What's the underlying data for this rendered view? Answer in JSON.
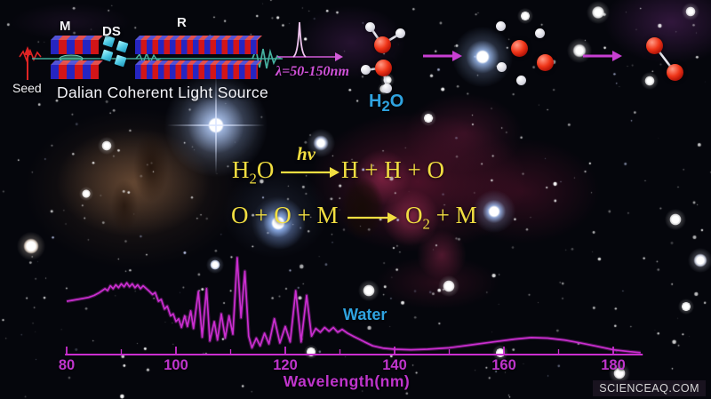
{
  "colors": {
    "spectrum_magenta": "#cb2ed0",
    "label_cyan": "#2fa3e0",
    "equation_yellow": "#f1de41",
    "seed_red": "#e02424",
    "beam_teal": "#46b2a0",
    "undulator_blue": "#2525c2",
    "undulator_red": "#d21518",
    "ds_cyan": "#49c6e2"
  },
  "light_source": {
    "seed_label": "Seed",
    "modulator_label": "M",
    "dispersion_label": "DS",
    "radiator_label": "R",
    "name": "Dalian Coherent Light Source",
    "wavelength_range": "λ=50-150nm"
  },
  "molecules": {
    "h2o_label": {
      "pre": "H",
      "sub": "2",
      "post": "O"
    }
  },
  "reactions": {
    "line1": {
      "reactant": {
        "pre": "H",
        "sub": "2",
        "post": "O"
      },
      "photon": "hν",
      "products": "H + H + O"
    },
    "line2": {
      "reactants": "O + O + M",
      "products": {
        "pre": "O",
        "sub": "2",
        "post": " + M"
      }
    }
  },
  "chart_data": {
    "type": "line",
    "series_name": "Water",
    "xlabel": "Wavelength(nm)",
    "x_ticks": [
      80,
      100,
      120,
      140,
      160,
      180
    ],
    "x_minor_ticks": [
      90,
      110,
      130,
      150,
      170
    ],
    "xlim": [
      79.7,
      185.4
    ],
    "ylim": [
      0,
      1.05
    ],
    "legend_position": "above-line-right",
    "grid": false,
    "line_color": "#cb2ed0",
    "points": [
      [
        80,
        0.55
      ],
      [
        81,
        0.56
      ],
      [
        82,
        0.57
      ],
      [
        83,
        0.58
      ],
      [
        84,
        0.59
      ],
      [
        85,
        0.61
      ],
      [
        86,
        0.64
      ],
      [
        87,
        0.68
      ],
      [
        87.5,
        0.66
      ],
      [
        88,
        0.71
      ],
      [
        88.5,
        0.68
      ],
      [
        89,
        0.72
      ],
      [
        89.5,
        0.69
      ],
      [
        90,
        0.73
      ],
      [
        90.5,
        0.7
      ],
      [
        91,
        0.74
      ],
      [
        91.5,
        0.7
      ],
      [
        92,
        0.73
      ],
      [
        92.5,
        0.69
      ],
      [
        93,
        0.72
      ],
      [
        93.5,
        0.68
      ],
      [
        94,
        0.71
      ],
      [
        95,
        0.66
      ],
      [
        95.7,
        0.62
      ],
      [
        96.2,
        0.64
      ],
      [
        96.8,
        0.55
      ],
      [
        97.3,
        0.57
      ],
      [
        97.9,
        0.47
      ],
      [
        98.4,
        0.5
      ],
      [
        99,
        0.4
      ],
      [
        99.5,
        0.42
      ],
      [
        100,
        0.34
      ],
      [
        100.5,
        0.37
      ],
      [
        101,
        0.28
      ],
      [
        101.6,
        0.4
      ],
      [
        102.1,
        0.29
      ],
      [
        102.7,
        0.45
      ],
      [
        103.2,
        0.27
      ],
      [
        104.1,
        0.65
      ],
      [
        104.8,
        0.18
      ],
      [
        105.6,
        0.68
      ],
      [
        106.2,
        0.14
      ],
      [
        107,
        0.34
      ],
      [
        107.6,
        0.15
      ],
      [
        108.3,
        0.42
      ],
      [
        109,
        0.17
      ],
      [
        109.7,
        0.4
      ],
      [
        110.4,
        0.21
      ],
      [
        111.2,
        1.0
      ],
      [
        111.9,
        0.38
      ],
      [
        112.6,
        0.86
      ],
      [
        113.3,
        0.19
      ],
      [
        113.9,
        0.07
      ],
      [
        114.7,
        0.17
      ],
      [
        115.4,
        0.09
      ],
      [
        116.2,
        0.22
      ],
      [
        117,
        0.11
      ],
      [
        118,
        0.37
      ],
      [
        119,
        0.12
      ],
      [
        120,
        0.29
      ],
      [
        120.9,
        0.13
      ],
      [
        121.9,
        0.66
      ],
      [
        122.9,
        0.13
      ],
      [
        123.9,
        0.61
      ],
      [
        124.8,
        0.19
      ],
      [
        125.6,
        0.27
      ],
      [
        126.4,
        0.23
      ],
      [
        127.2,
        0.28
      ],
      [
        128,
        0.24
      ],
      [
        128.8,
        0.28
      ],
      [
        129.6,
        0.23
      ],
      [
        130.4,
        0.26
      ],
      [
        131.4,
        0.22
      ],
      [
        132.4,
        0.19
      ],
      [
        133.5,
        0.16
      ],
      [
        134.5,
        0.13
      ],
      [
        136,
        0.09
      ],
      [
        138,
        0.065
      ],
      [
        140,
        0.055
      ],
      [
        143,
        0.05
      ],
      [
        146,
        0.055
      ],
      [
        150,
        0.07
      ],
      [
        154,
        0.1
      ],
      [
        158,
        0.13
      ],
      [
        162,
        0.16
      ],
      [
        165,
        0.175
      ],
      [
        168,
        0.17
      ],
      [
        171,
        0.15
      ],
      [
        174,
        0.12
      ],
      [
        177,
        0.085
      ],
      [
        180,
        0.05
      ],
      [
        183,
        0.03
      ],
      [
        185,
        0.02
      ]
    ]
  },
  "watermark": "SCIENCEAQ.COM"
}
